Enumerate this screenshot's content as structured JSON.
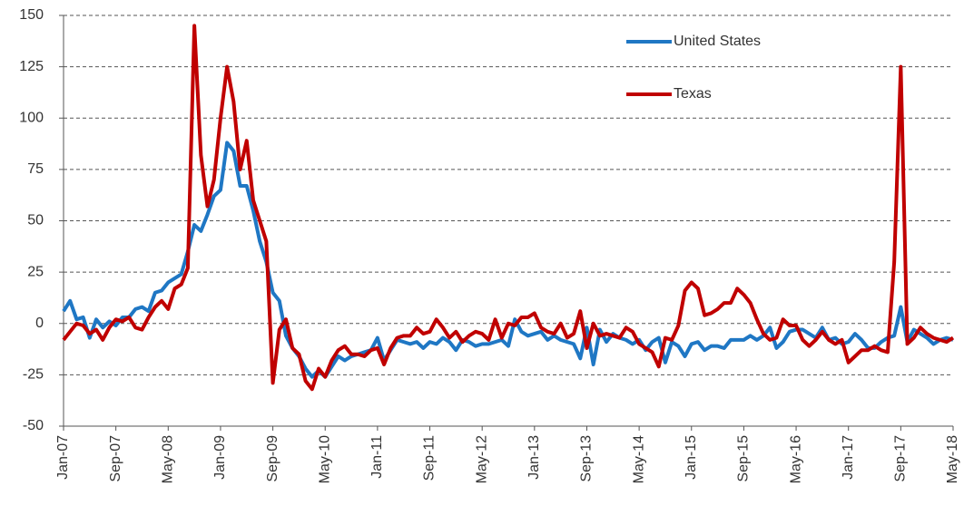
{
  "chart_data": {
    "type": "line",
    "categories": [
      "Jan-07",
      null,
      null,
      null,
      null,
      null,
      null,
      null,
      "Sep-07",
      null,
      null,
      null,
      null,
      null,
      null,
      null,
      "May-08",
      null,
      null,
      null,
      null,
      null,
      null,
      null,
      "Jan-09",
      null,
      null,
      null,
      null,
      null,
      null,
      null,
      "Sep-09",
      null,
      null,
      null,
      null,
      null,
      null,
      null,
      "May-10",
      null,
      null,
      null,
      null,
      null,
      null,
      null,
      "Jan-11",
      null,
      null,
      null,
      null,
      null,
      null,
      null,
      "Sep-11",
      null,
      null,
      null,
      null,
      null,
      null,
      null,
      "May-12",
      null,
      null,
      null,
      null,
      null,
      null,
      null,
      "Jan-13",
      null,
      null,
      null,
      null,
      null,
      null,
      null,
      "Sep-13",
      null,
      null,
      null,
      null,
      null,
      null,
      null,
      "May-14",
      null,
      null,
      null,
      null,
      null,
      null,
      null,
      "Jan-15",
      null,
      null,
      null,
      null,
      null,
      null,
      null,
      "Sep-15",
      null,
      null,
      null,
      null,
      null,
      null,
      null,
      "May-16",
      null,
      null,
      null,
      null,
      null,
      null,
      null,
      "Jan-17",
      null,
      null,
      null,
      null,
      null,
      null,
      null,
      "Sep-17",
      null,
      null,
      null,
      null,
      null,
      null,
      null,
      "May-18"
    ],
    "series": [
      {
        "name": "United States",
        "color": "#1f77c4",
        "values": [
          6,
          11,
          2,
          3,
          -7,
          2,
          -2,
          1,
          -1,
          3,
          3,
          7,
          8,
          6,
          15,
          16,
          20,
          22,
          24,
          35,
          48,
          45,
          53,
          62,
          65,
          88,
          84,
          67,
          67,
          55,
          40,
          30,
          15,
          11,
          -6,
          -12,
          -16,
          -22,
          -26,
          -23,
          -26,
          -21,
          -16,
          -18,
          -16,
          -15,
          -14,
          -13,
          -7,
          -18,
          -13,
          -8,
          -9,
          -10,
          -9,
          -12,
          -9,
          -10,
          -7,
          -9,
          -13,
          -8,
          -9,
          -11,
          -10,
          -10,
          -9,
          -8,
          -11,
          2,
          -4,
          -6,
          -5,
          -4,
          -8,
          -6,
          -8,
          -9,
          -10,
          -17,
          -2,
          -20,
          -3,
          -9,
          -5,
          -7,
          -8,
          -10,
          -8,
          -13,
          -9,
          -7,
          -19,
          -9,
          -11,
          -16,
          -10,
          -9,
          -13,
          -11,
          -11,
          -12,
          -8,
          -8,
          -8,
          -6,
          -8,
          -6,
          -2,
          -12,
          -9,
          -4,
          -3,
          -3,
          -5,
          -7,
          -2,
          -8,
          -7,
          -10,
          -9,
          -5,
          -8,
          -12,
          -12,
          -9,
          -7,
          -6,
          8,
          -9,
          -3,
          -5,
          -7,
          -10,
          -8,
          -7,
          -8
        ]
      },
      {
        "name": "Texas",
        "color": "#c00000",
        "values": [
          -8,
          -4,
          0,
          -1,
          -5,
          -3,
          -8,
          -2,
          2,
          1,
          3,
          -2,
          -3,
          3,
          8,
          11,
          7,
          17,
          19,
          27,
          145,
          82,
          57,
          70,
          100,
          125,
          108,
          75,
          89,
          60,
          50,
          40,
          -29,
          -3,
          2,
          -12,
          -15,
          -28,
          -32,
          -22,
          -26,
          -18,
          -13,
          -11,
          -15,
          -15,
          -16,
          -13,
          -12,
          -20,
          -12,
          -7,
          -6,
          -6,
          -2,
          -5,
          -4,
          2,
          -2,
          -7,
          -4,
          -9,
          -6,
          -4,
          -5,
          -8,
          2,
          -7,
          0,
          -1,
          3,
          3,
          5,
          -2,
          -4,
          -5,
          0,
          -7,
          -5,
          6,
          -12,
          0,
          -6,
          -5,
          -6,
          -7,
          -2,
          -4,
          -10,
          -12,
          -14,
          -21,
          -7,
          -8,
          -1,
          16,
          20,
          17,
          4,
          5,
          7,
          10,
          10,
          17,
          14,
          10,
          2,
          -5,
          -8,
          -7,
          2,
          -1,
          -1,
          -8,
          -11,
          -8,
          -4,
          -8,
          -10,
          -8,
          -19,
          -16,
          -13,
          -13,
          -11,
          -13,
          -14,
          30,
          125,
          -10,
          -7,
          -2,
          -5,
          -7,
          -8,
          -9,
          -7
        ]
      }
    ],
    "ylim": [
      -50,
      150
    ],
    "yticks": [
      -50,
      -25,
      0,
      25,
      50,
      75,
      100,
      125,
      150
    ],
    "grid": true,
    "legend": "upper right"
  }
}
